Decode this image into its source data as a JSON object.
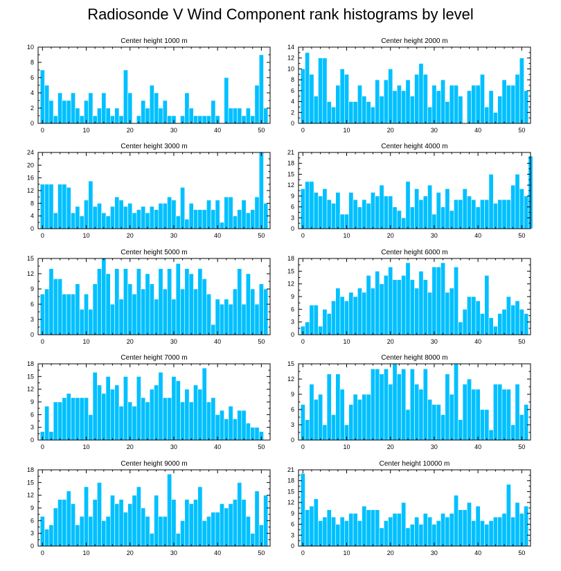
{
  "title": "Radiosonde V Wind Component rank histograms by level",
  "colors": {
    "bar": "#00C0FF",
    "frame": "#000000"
  },
  "chart_data": [
    {
      "type": "bar",
      "title": "Center height 1000 m",
      "xlim": [
        -1,
        52
      ],
      "ylim": [
        0,
        10
      ],
      "xticks": [
        0,
        10,
        20,
        30,
        40,
        50
      ],
      "yticks": [
        0,
        2,
        4,
        6,
        8,
        10
      ],
      "values": [
        7,
        5,
        3,
        1,
        4,
        3,
        3,
        4,
        2,
        1,
        3,
        4,
        1,
        2,
        4,
        2,
        1,
        2,
        1,
        7,
        4,
        0,
        1,
        3,
        2,
        5,
        4,
        2,
        3,
        1,
        1,
        0,
        1,
        4,
        2,
        1,
        1,
        1,
        1,
        3,
        1,
        0,
        6,
        2,
        2,
        2,
        1,
        2,
        1,
        5,
        9,
        2
      ]
    },
    {
      "type": "bar",
      "title": "Center height 2000 m",
      "xlim": [
        -1,
        52
      ],
      "ylim": [
        0,
        14
      ],
      "xticks": [
        0,
        10,
        20,
        30,
        40,
        50
      ],
      "yticks": [
        0,
        2,
        4,
        6,
        8,
        10,
        12,
        14
      ],
      "values": [
        10,
        13,
        9,
        5,
        12,
        12,
        4,
        3,
        7,
        10,
        9,
        4,
        4,
        7,
        5,
        4,
        3,
        8,
        5,
        8,
        10,
        6,
        7,
        6,
        8,
        5,
        9,
        11,
        9,
        3,
        7,
        6,
        8,
        4,
        7,
        7,
        5,
        0,
        6,
        7,
        7,
        9,
        3,
        6,
        2,
        5,
        8,
        7,
        7,
        9,
        12,
        6
      ]
    },
    {
      "type": "bar",
      "title": "Center height 3000 m",
      "xlim": [
        -1,
        52
      ],
      "ylim": [
        0,
        24
      ],
      "xticks": [
        0,
        10,
        20,
        30,
        40,
        50
      ],
      "yticks": [
        0,
        4,
        8,
        12,
        16,
        20,
        24
      ],
      "values": [
        14,
        14,
        14,
        5,
        14,
        14,
        13,
        5,
        7,
        4,
        9,
        15,
        7,
        8,
        5,
        4,
        7,
        10,
        9,
        7,
        8,
        5,
        6,
        7,
        5,
        7,
        6,
        8,
        8,
        10,
        9,
        4,
        13,
        3,
        8,
        6,
        6,
        6,
        9,
        6,
        9,
        2,
        10,
        10,
        4,
        6,
        9,
        5,
        6,
        10,
        24,
        8
      ]
    },
    {
      "type": "bar",
      "title": "Center height 4000 m",
      "xlim": [
        -1,
        52
      ],
      "ylim": [
        0,
        21
      ],
      "xticks": [
        0,
        10,
        20,
        30,
        40,
        50
      ],
      "yticks": [
        0,
        3,
        6,
        9,
        12,
        15,
        18,
        21
      ],
      "values": [
        11,
        13,
        13,
        10,
        9,
        11,
        8,
        7,
        10,
        4,
        4,
        10,
        8,
        6,
        8,
        7,
        10,
        9,
        12,
        9,
        9,
        6,
        5,
        3,
        13,
        6,
        11,
        8,
        9,
        12,
        4,
        10,
        6,
        11,
        5,
        8,
        8,
        11,
        9,
        8,
        6,
        8,
        8,
        15,
        7,
        8,
        8,
        8,
        12,
        15,
        11,
        9,
        20
      ]
    },
    {
      "type": "bar",
      "title": "Center height 5000 m",
      "xlim": [
        -1,
        52
      ],
      "ylim": [
        0,
        15
      ],
      "xticks": [
        0,
        10,
        20,
        30,
        40,
        50
      ],
      "yticks": [
        0,
        3,
        6,
        9,
        12,
        15
      ],
      "values": [
        8,
        9,
        13,
        11,
        11,
        8,
        8,
        8,
        10,
        5,
        8,
        5,
        10,
        13,
        15,
        12,
        6,
        13,
        7,
        13,
        10,
        8,
        13,
        9,
        12,
        10,
        7,
        13,
        9,
        13,
        7,
        14,
        9,
        13,
        12,
        9,
        13,
        11,
        8,
        2,
        7,
        6,
        7,
        6,
        9,
        13,
        6,
        12,
        9,
        6,
        10,
        9
      ]
    },
    {
      "type": "bar",
      "title": "Center height 6000 m",
      "xlim": [
        -1,
        52
      ],
      "ylim": [
        0,
        18
      ],
      "xticks": [
        0,
        10,
        20,
        30,
        40,
        50
      ],
      "yticks": [
        0,
        3,
        6,
        9,
        12,
        15,
        18
      ],
      "values": [
        2,
        3,
        7,
        7,
        2,
        6,
        5,
        8,
        11,
        9,
        8,
        10,
        9,
        11,
        10,
        14,
        11,
        15,
        12,
        14,
        16,
        13,
        13,
        14,
        17,
        13,
        11,
        15,
        13,
        10,
        16,
        16,
        17,
        10,
        11,
        16,
        3,
        6,
        9,
        9,
        8,
        5,
        14,
        4,
        2,
        5,
        6,
        9,
        7,
        8,
        6,
        5
      ]
    },
    {
      "type": "bar",
      "title": "Center height 7000 m",
      "xlim": [
        -1,
        52
      ],
      "ylim": [
        0,
        18
      ],
      "xticks": [
        0,
        10,
        20,
        30,
        40,
        50
      ],
      "yticks": [
        0,
        3,
        6,
        9,
        12,
        15,
        18
      ],
      "values": [
        2,
        8,
        2,
        9,
        9,
        10,
        11,
        10,
        10,
        10,
        10,
        6,
        16,
        13,
        11,
        15,
        12,
        13,
        8,
        15,
        9,
        8,
        15,
        10,
        9,
        12,
        13,
        16,
        10,
        10,
        15,
        14,
        9,
        12,
        9,
        13,
        12,
        17,
        9,
        10,
        6,
        7,
        5,
        8,
        5,
        7,
        7,
        4,
        3,
        3,
        2
      ]
    },
    {
      "type": "bar",
      "title": "Center height 8000 m",
      "xlim": [
        -1,
        52
      ],
      "ylim": [
        0,
        15
      ],
      "xticks": [
        0,
        10,
        20,
        30,
        40,
        50
      ],
      "yticks": [
        0,
        3,
        6,
        9,
        12,
        15
      ],
      "values": [
        7,
        4,
        11,
        8,
        9,
        3,
        13,
        5,
        13,
        10,
        3,
        7,
        9,
        8,
        9,
        9,
        14,
        14,
        13,
        14,
        11,
        15,
        13,
        14,
        6,
        14,
        11,
        10,
        14,
        8,
        7,
        7,
        5,
        13,
        9,
        15,
        4,
        11,
        12,
        10,
        10,
        6,
        6,
        2,
        11,
        11,
        10,
        10,
        3,
        11,
        5,
        7
      ]
    },
    {
      "type": "bar",
      "title": "Center height 9000 m",
      "xlim": [
        -1,
        52
      ],
      "ylim": [
        0,
        18
      ],
      "xticks": [
        0,
        10,
        20,
        30,
        40,
        50
      ],
      "yticks": [
        0,
        3,
        6,
        9,
        12,
        15,
        18
      ],
      "values": [
        7,
        4,
        5,
        9,
        11,
        11,
        13,
        10,
        5,
        7,
        14,
        7,
        11,
        15,
        6,
        7,
        12,
        10,
        11,
        8,
        10,
        12,
        14,
        9,
        7,
        3,
        12,
        7,
        7,
        17,
        11,
        3,
        6,
        11,
        10,
        11,
        14,
        6,
        7,
        8,
        8,
        10,
        9,
        10,
        11,
        15,
        11,
        7,
        3,
        13,
        5,
        12
      ]
    },
    {
      "type": "bar",
      "title": "Center height 10000 m",
      "xlim": [
        -1,
        52
      ],
      "ylim": [
        0,
        21
      ],
      "xticks": [
        0,
        10,
        20,
        30,
        40,
        50
      ],
      "yticks": [
        0,
        3,
        6,
        9,
        12,
        15,
        18,
        21
      ],
      "values": [
        20,
        10,
        11,
        13,
        7,
        8,
        10,
        8,
        6,
        8,
        7,
        9,
        9,
        7,
        11,
        10,
        10,
        10,
        5,
        7,
        8,
        9,
        9,
        12,
        5,
        6,
        8,
        6,
        9,
        8,
        6,
        7,
        9,
        8,
        9,
        14,
        10,
        10,
        12,
        7,
        11,
        7,
        6,
        7,
        8,
        8,
        9,
        17,
        8,
        12,
        9,
        11
      ]
    }
  ]
}
